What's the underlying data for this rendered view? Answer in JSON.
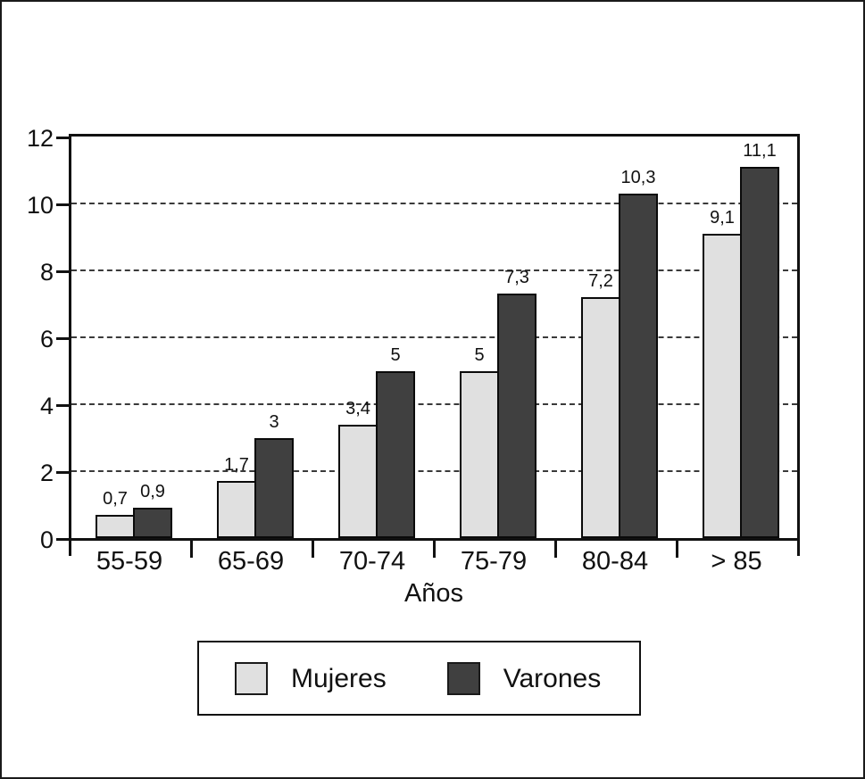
{
  "figure": {
    "background": "#ffffff",
    "border_color": "#1a1a1a",
    "text_color": "#111111"
  },
  "chart_data": {
    "type": "bar",
    "title": "",
    "xlabel": "Años",
    "ylabel": "",
    "categories": [
      "55-59",
      "65-69",
      "70-74",
      "75-79",
      "80-84",
      "> 85"
    ],
    "series": [
      {
        "name": "Mujeres",
        "color": "#e0e0e0",
        "values": [
          0.7,
          1.7,
          3.4,
          5,
          7.2,
          9.1
        ],
        "value_labels": [
          "0,7",
          "1,7",
          "3,4",
          "5",
          "7,2",
          "9,1"
        ]
      },
      {
        "name": "Varones",
        "color": "#404040",
        "values": [
          0.9,
          3,
          5,
          7.3,
          10.3,
          11.1
        ],
        "value_labels": [
          "0,9",
          "3",
          "5",
          "7,3",
          "10,3",
          "11,1"
        ]
      }
    ],
    "ylim": [
      0,
      12
    ],
    "yticks": [
      "0",
      "2",
      "4",
      "6",
      "8",
      "10",
      "12"
    ],
    "gridline_values": [
      2,
      4,
      6,
      8,
      10
    ],
    "grid_style": "dashed",
    "legend_position": "bottom",
    "decimal_separator": ","
  },
  "legend": {
    "items": [
      {
        "label": "Mujeres",
        "color": "#e0e0e0"
      },
      {
        "label": "Varones",
        "color": "#404040"
      }
    ]
  }
}
